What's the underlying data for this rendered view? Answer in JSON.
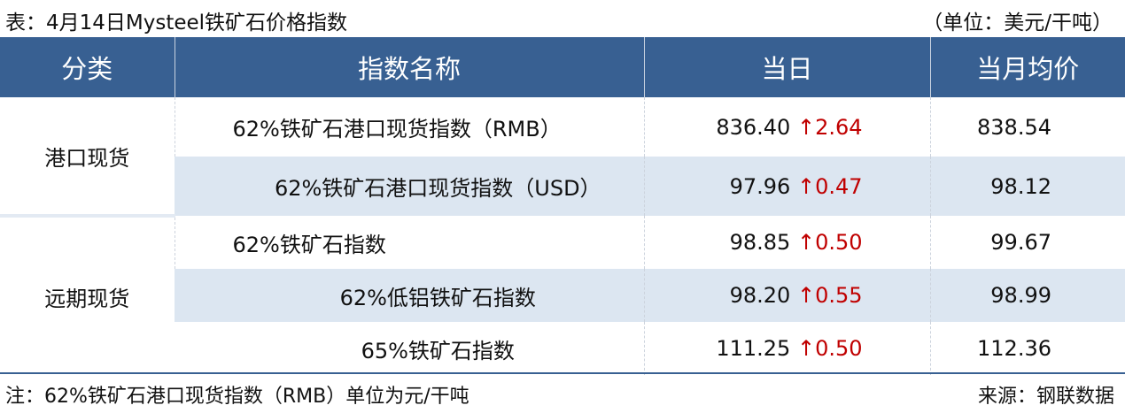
{
  "title": "表：4月14日Mysteel铁矿石价格指数",
  "unit": "（单位：美元/干吨）",
  "headers": [
    "分类",
    "指数名称",
    "当日",
    "当月均价"
  ],
  "categories": [
    "港口现货",
    "远期现货"
  ],
  "rows": [
    {
      "name": "62%铁矿石港口现货指数（RMB）",
      "day": "836.40",
      "arrow": "↑",
      "change": "2.64",
      "avg": "838.54"
    },
    {
      "name": "62%铁矿石港口现货指数（USD）",
      "day": "97.96",
      "arrow": "↑",
      "change": "0.47",
      "avg": "98.12"
    },
    {
      "name": "62%铁矿石指数",
      "day": "98.85",
      "arrow": "↑",
      "change": "0.50",
      "avg": "99.67"
    },
    {
      "name": "62%低铝铁矿石指数",
      "day": "98.20",
      "arrow": "↑",
      "change": "0.55",
      "avg": "98.99"
    },
    {
      "name": "65%铁矿石指数",
      "day": "111.25",
      "arrow": "↑",
      "change": "0.50",
      "avg": "112.36"
    }
  ],
  "note": "注：62%铁矿石港口现货指数（RMB）单位为元/干吨",
  "source": "来源：钢联数据",
  "colors": {
    "header": "#386092",
    "stripe": "#dce6f1",
    "up": "#c00000"
  }
}
